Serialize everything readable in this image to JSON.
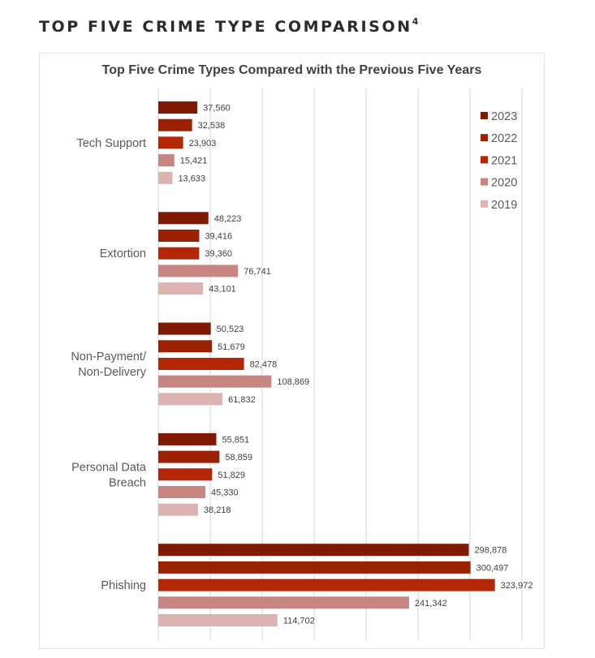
{
  "page": {
    "heading": "TOP FIVE CRIME TYPE COMPARISON",
    "heading_footnote": "4"
  },
  "chart_data": {
    "type": "bar",
    "orientation": "horizontal",
    "title": "Top Five Crime Types Compared with the Previous Five Years",
    "xlabel": "",
    "ylabel": "",
    "xlim": [
      0,
      350000
    ],
    "grid_step": 50000,
    "grid": true,
    "legend_position": "top-right",
    "categories": [
      "Tech Support",
      "Extortion",
      "Non-Payment/\nNon-Delivery",
      "Personal Data\nBreach",
      "Phishing"
    ],
    "series": [
      {
        "name": "2023",
        "color": "#7f1a05",
        "values": [
          37560,
          48223,
          50523,
          55851,
          298878
        ],
        "labels": [
          "37,560",
          "48,223",
          "50,523",
          "55,851",
          "298,878"
        ]
      },
      {
        "name": "2022",
        "color": "#9b2102",
        "values": [
          32538,
          39416,
          51679,
          58859,
          300497
        ],
        "labels": [
          "32,538",
          "39,416",
          "51,679",
          "58,859",
          "300,497"
        ]
      },
      {
        "name": "2021",
        "color": "#b32704",
        "values": [
          23903,
          39360,
          82478,
          51829,
          323972
        ],
        "labels": [
          "23,903",
          "39,360",
          "82,478",
          "51,829",
          "323,972"
        ]
      },
      {
        "name": "2020",
        "color": "#c88682",
        "values": [
          15421,
          76741,
          108869,
          45330,
          241342
        ],
        "labels": [
          "15,421",
          "76,741",
          "108,869",
          "45,330",
          "241,342"
        ]
      },
      {
        "name": "2019",
        "color": "#dbb4b2",
        "values": [
          13633,
          43101,
          61832,
          38218,
          114702
        ],
        "labels": [
          "13,633",
          "43,101",
          "61,832",
          "38,218",
          "114,702"
        ]
      }
    ]
  }
}
